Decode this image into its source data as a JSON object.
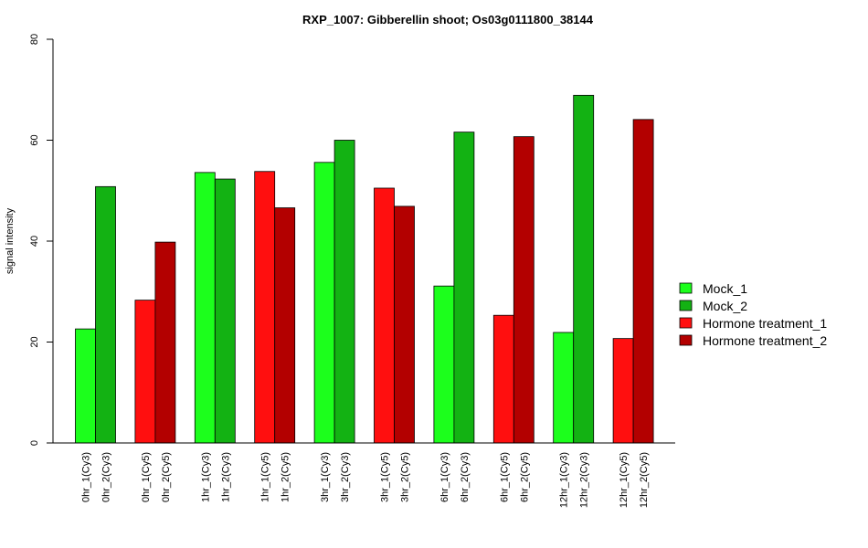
{
  "chart_data": {
    "type": "bar",
    "title": "RXP_1007: Gibberellin shoot; Os03g0111800_38144",
    "ylabel": "signal intensity",
    "xlabel": "",
    "ylim": [
      0,
      80
    ],
    "yticks": [
      0,
      20,
      40,
      60,
      80
    ],
    "grid": false,
    "legend_position": "right",
    "legend": [
      {
        "name": "Mock_1",
        "color": "#1CFF1C"
      },
      {
        "name": "Mock_2",
        "color": "#13B213"
      },
      {
        "name": "Hormone treatment_1",
        "color": "#FF0F0F"
      },
      {
        "name": "Hormone treatment_2",
        "color": "#B30000"
      }
    ],
    "groups": [
      {
        "bars": [
          {
            "label": "0hr_1(Cy3)",
            "value": 22.6,
            "color": "#1CFF1C"
          },
          {
            "label": "0hr_2(Cy3)",
            "value": 50.8,
            "color": "#13B213"
          }
        ]
      },
      {
        "bars": [
          {
            "label": "0hr_1(Cy5)",
            "value": 28.3,
            "color": "#FF0F0F"
          },
          {
            "label": "0hr_2(Cy5)",
            "value": 39.8,
            "color": "#B30000"
          }
        ]
      },
      {
        "bars": [
          {
            "label": "1hr_1(Cy3)",
            "value": 53.6,
            "color": "#1CFF1C"
          },
          {
            "label": "1hr_2(Cy3)",
            "value": 52.3,
            "color": "#13B213"
          }
        ]
      },
      {
        "bars": [
          {
            "label": "1hr_1(Cy5)",
            "value": 53.8,
            "color": "#FF0F0F"
          },
          {
            "label": "1hr_2(Cy5)",
            "value": 46.6,
            "color": "#B30000"
          }
        ]
      },
      {
        "bars": [
          {
            "label": "3hr_1(Cy3)",
            "value": 55.6,
            "color": "#1CFF1C"
          },
          {
            "label": "3hr_2(Cy3)",
            "value": 60.0,
            "color": "#13B213"
          }
        ]
      },
      {
        "bars": [
          {
            "label": "3hr_1(Cy5)",
            "value": 50.5,
            "color": "#FF0F0F"
          },
          {
            "label": "3hr_2(Cy5)",
            "value": 46.9,
            "color": "#B30000"
          }
        ]
      },
      {
        "bars": [
          {
            "label": "6hr_1(Cy3)",
            "value": 31.1,
            "color": "#1CFF1C"
          },
          {
            "label": "6hr_2(Cy3)",
            "value": 61.6,
            "color": "#13B213"
          }
        ]
      },
      {
        "bars": [
          {
            "label": "6hr_1(Cy5)",
            "value": 25.3,
            "color": "#FF0F0F"
          },
          {
            "label": "6hr_2(Cy5)",
            "value": 60.7,
            "color": "#B30000"
          }
        ]
      },
      {
        "bars": [
          {
            "label": "12hr_1(Cy3)",
            "value": 21.9,
            "color": "#1CFF1C"
          },
          {
            "label": "12hr_2(Cy3)",
            "value": 68.9,
            "color": "#13B213"
          }
        ]
      },
      {
        "bars": [
          {
            "label": "12hr_1(Cy5)",
            "value": 20.7,
            "color": "#FF0F0F"
          },
          {
            "label": "12hr_2(Cy5)",
            "value": 64.1,
            "color": "#B30000"
          }
        ]
      }
    ]
  }
}
